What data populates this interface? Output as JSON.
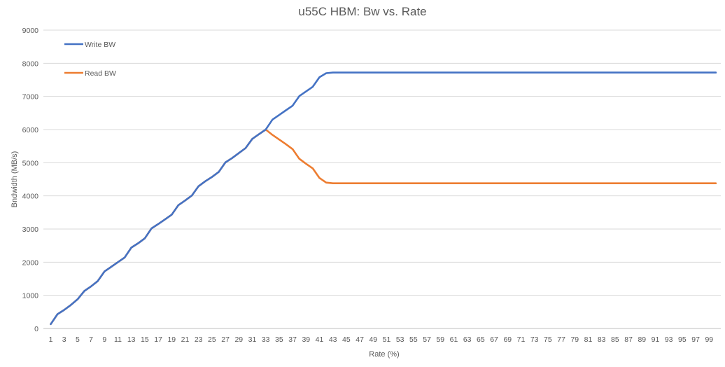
{
  "chart_data": {
    "type": "line",
    "title": "u55C HBM: Bw vs. Rate",
    "xlabel": "Rate (%)",
    "ylabel": "Bndwidth (MB/s)",
    "ylim": [
      0,
      9000
    ],
    "yticks": [
      0,
      1000,
      2000,
      3000,
      4000,
      5000,
      6000,
      7000,
      8000,
      9000
    ],
    "xlim": [
      1,
      100
    ],
    "xticks": [
      1,
      3,
      5,
      7,
      9,
      11,
      13,
      15,
      17,
      19,
      21,
      23,
      25,
      27,
      29,
      31,
      33,
      35,
      37,
      39,
      41,
      43,
      45,
      47,
      49,
      51,
      53,
      55,
      57,
      59,
      61,
      63,
      65,
      67,
      69,
      71,
      73,
      75,
      77,
      79,
      81,
      83,
      85,
      87,
      89,
      91,
      93,
      95,
      97,
      99
    ],
    "grid": "horizontal",
    "legend": "top-left",
    "colors": {
      "write": "#4472c4",
      "read": "#ed7d31"
    },
    "series": [
      {
        "name": "Write BW",
        "points": [
          [
            1,
            130
          ],
          [
            2,
            430
          ],
          [
            3,
            560
          ],
          [
            4,
            710
          ],
          [
            5,
            880
          ],
          [
            6,
            1130
          ],
          [
            7,
            1270
          ],
          [
            8,
            1430
          ],
          [
            9,
            1720
          ],
          [
            10,
            1860
          ],
          [
            11,
            2000
          ],
          [
            12,
            2140
          ],
          [
            13,
            2440
          ],
          [
            14,
            2570
          ],
          [
            15,
            2720
          ],
          [
            16,
            3020
          ],
          [
            17,
            3150
          ],
          [
            18,
            3290
          ],
          [
            19,
            3430
          ],
          [
            20,
            3720
          ],
          [
            21,
            3860
          ],
          [
            22,
            4010
          ],
          [
            23,
            4290
          ],
          [
            24,
            4440
          ],
          [
            25,
            4570
          ],
          [
            26,
            4720
          ],
          [
            27,
            5010
          ],
          [
            28,
            5140
          ],
          [
            29,
            5290
          ],
          [
            30,
            5440
          ],
          [
            31,
            5720
          ],
          [
            32,
            5860
          ],
          [
            33,
            6000
          ],
          [
            34,
            6300
          ],
          [
            35,
            6440
          ],
          [
            36,
            6580
          ],
          [
            37,
            6720
          ],
          [
            38,
            7010
          ],
          [
            39,
            7150
          ],
          [
            40,
            7290
          ],
          [
            41,
            7580
          ],
          [
            42,
            7700
          ],
          [
            43,
            7720
          ],
          [
            100,
            7720
          ]
        ]
      },
      {
        "name": "Read BW",
        "points": [
          [
            1,
            130
          ],
          [
            2,
            430
          ],
          [
            3,
            560
          ],
          [
            4,
            710
          ],
          [
            5,
            880
          ],
          [
            6,
            1130
          ],
          [
            7,
            1270
          ],
          [
            8,
            1430
          ],
          [
            9,
            1720
          ],
          [
            10,
            1860
          ],
          [
            11,
            2000
          ],
          [
            12,
            2140
          ],
          [
            13,
            2440
          ],
          [
            14,
            2570
          ],
          [
            15,
            2720
          ],
          [
            16,
            3020
          ],
          [
            17,
            3150
          ],
          [
            18,
            3290
          ],
          [
            19,
            3430
          ],
          [
            20,
            3720
          ],
          [
            21,
            3860
          ],
          [
            22,
            4010
          ],
          [
            23,
            4290
          ],
          [
            24,
            4440
          ],
          [
            25,
            4570
          ],
          [
            26,
            4720
          ],
          [
            27,
            5010
          ],
          [
            28,
            5140
          ],
          [
            29,
            5290
          ],
          [
            30,
            5440
          ],
          [
            31,
            5720
          ],
          [
            32,
            5860
          ],
          [
            33,
            6000
          ],
          [
            34,
            5840
          ],
          [
            35,
            5700
          ],
          [
            36,
            5560
          ],
          [
            37,
            5410
          ],
          [
            38,
            5120
          ],
          [
            39,
            4970
          ],
          [
            40,
            4830
          ],
          [
            41,
            4540
          ],
          [
            42,
            4400
          ],
          [
            43,
            4380
          ],
          [
            100,
            4380
          ]
        ]
      }
    ]
  }
}
